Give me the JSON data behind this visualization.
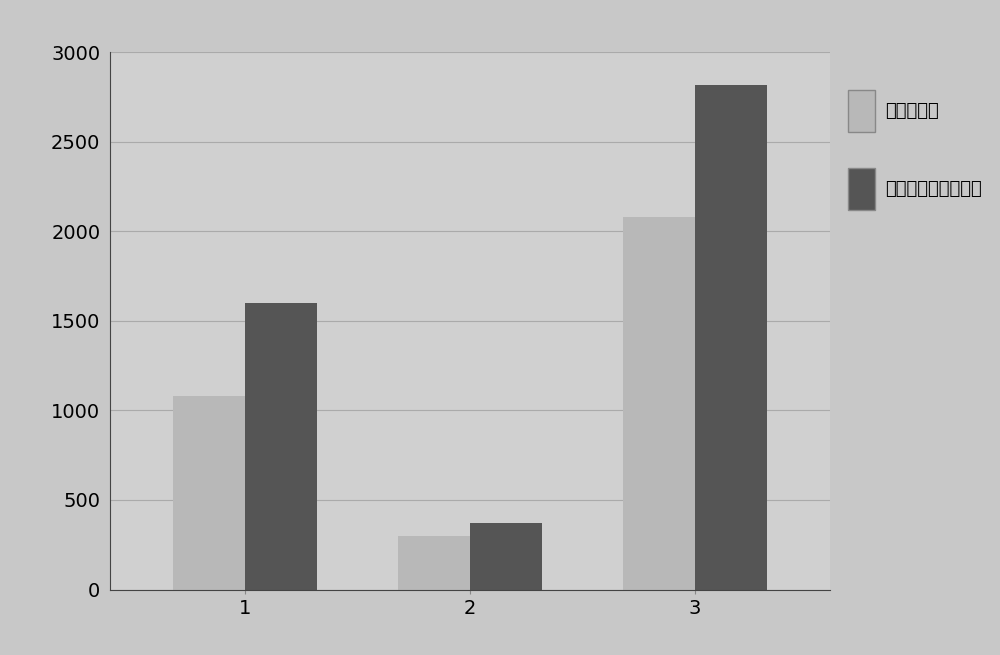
{
  "categories": [
    "1",
    "2",
    "3"
  ],
  "series1_label": "自适应方法",
  "series2_label": "基于电离层探测方法",
  "series1_values": [
    1080,
    300,
    2080
  ],
  "series2_values": [
    1600,
    370,
    2820
  ],
  "series1_color": "#b8b8b8",
  "series2_color": "#555555",
  "ylim": [
    0,
    3000
  ],
  "yticks": [
    0,
    500,
    1000,
    1500,
    2000,
    2500,
    3000
  ],
  "bar_width": 0.32,
  "tick_font_size": 14,
  "legend_font_size": 14,
  "outer_bg_color": "#c8c8c8",
  "plot_bg_color": "#d0d0d0",
  "legend_bg_color": "#e8e8e8",
  "grid_color": "#aaaaaa"
}
